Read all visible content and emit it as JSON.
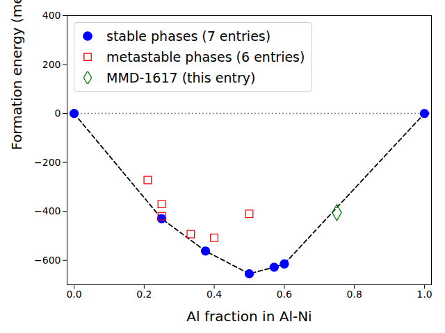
{
  "chart_data": {
    "type": "scatter",
    "xlabel": "Al fraction in Al-Ni",
    "ylabel": "Formation energy (meV/atom)",
    "xlim": [
      -0.02,
      1.02
    ],
    "xticks": [
      {
        "value": 0,
        "label": "0.0"
      },
      {
        "value": 0.2,
        "label": "0.2"
      },
      {
        "value": 0.4,
        "label": "0.4"
      },
      {
        "value": 0.6,
        "label": "0.6"
      },
      {
        "value": 0.8,
        "label": "0.8"
      },
      {
        "value": 1,
        "label": "1.0"
      }
    ],
    "ylim": [
      -700,
      400
    ],
    "yticks": [
      {
        "value": -600,
        "label": "−600"
      },
      {
        "value": -400,
        "label": "−400"
      },
      {
        "value": -200,
        "label": "−200"
      },
      0,
      200,
      400
    ],
    "reference_y": 0,
    "legend": "upper left",
    "series": [
      {
        "name": "stable phases (7 entries)",
        "color": "#0000ff",
        "marker": "circle",
        "line_style": "dashed",
        "x": [
          0,
          0.25,
          0.375,
          0.5,
          0.571,
          0.6,
          1
        ],
        "values": [
          0,
          -430,
          -562,
          -655,
          -628,
          -615,
          0
        ]
      },
      {
        "name": "metastable phases (6 entries)",
        "color": "#ff0000",
        "marker": "open_square",
        "x": [
          0.21,
          0.25,
          0.25,
          0.333,
          0.4,
          0.5
        ],
        "values": [
          -272,
          -370,
          -420,
          -493,
          -508,
          -410
        ]
      },
      {
        "name": "MMD-1617 (this entry)",
        "color": "#008000",
        "marker": "open_diamond",
        "x": [
          0.75
        ],
        "values": [
          -405
        ]
      }
    ]
  }
}
